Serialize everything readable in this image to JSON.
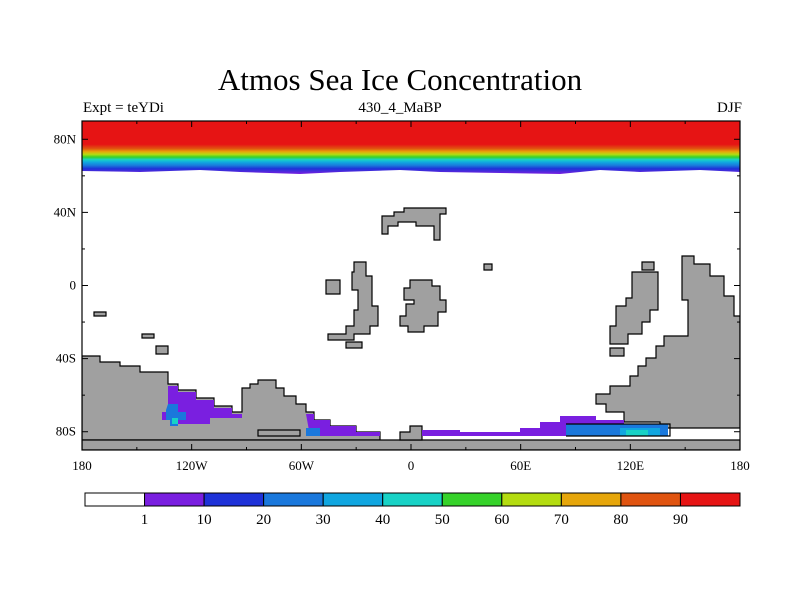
{
  "title": "Atmos Sea Ice Concentration",
  "left_label": "Expt = teYDi",
  "center_label": "430_4_MaBP",
  "right_label": "DJF",
  "y_ticks": [
    {
      "value": 80,
      "label": "80N"
    },
    {
      "value": 40,
      "label": "40N"
    },
    {
      "value": 0,
      "label": "0"
    },
    {
      "value": -40,
      "label": "40S"
    },
    {
      "value": -80,
      "label": "80S"
    }
  ],
  "x_ticks": [
    {
      "value": -180,
      "label": "180"
    },
    {
      "value": -120,
      "label": "120W"
    },
    {
      "value": -60,
      "label": "60W"
    },
    {
      "value": 0,
      "label": "0"
    },
    {
      "value": 60,
      "label": "60E"
    },
    {
      "value": 120,
      "label": "120E"
    },
    {
      "value": 180,
      "label": "180"
    }
  ],
  "colorbar": {
    "colors": [
      "#ffffff",
      "#7a1fe0",
      "#1e32d8",
      "#1a78dc",
      "#10a6e0",
      "#18d2c6",
      "#36d22a",
      "#b4dc10",
      "#e6a60a",
      "#e05410",
      "#e61414"
    ],
    "labels": [
      "1",
      "10",
      "20",
      "30",
      "40",
      "50",
      "60",
      "70",
      "80",
      "90"
    ]
  },
  "colors": {
    "land": "#a0a0a0",
    "ocean": "#ffffff"
  },
  "chart_data": {
    "type": "heatmap",
    "title": "Atmos Sea Ice Concentration",
    "subtitle_left": "Expt = teYDi",
    "subtitle_center": "430_4_MaBP",
    "subtitle_right": "DJF",
    "x_range": [
      -180,
      180
    ],
    "y_range": [
      -90,
      90
    ],
    "variable": "sea ice concentration (%)",
    "levels": [
      1,
      10,
      20,
      30,
      40,
      50,
      60,
      70,
      80,
      90
    ]
  }
}
